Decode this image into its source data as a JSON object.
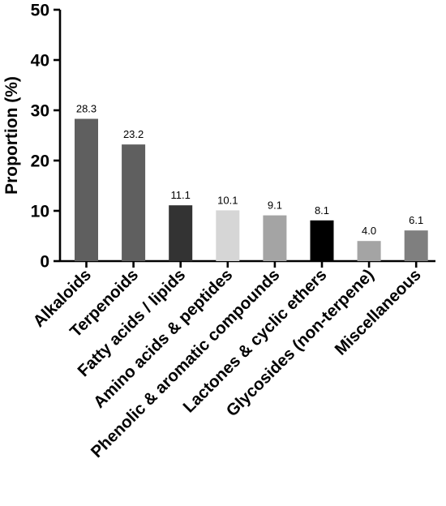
{
  "chart_data": {
    "type": "bar",
    "title": "",
    "xlabel": "",
    "ylabel": "Proportion (%)",
    "ylim": [
      0,
      50
    ],
    "yticks": [
      0,
      10,
      20,
      30,
      40,
      50
    ],
    "grid": false,
    "categories": [
      "Alkaloids",
      "Terpenoids",
      "Fatty acids / lipids",
      "Amino acids & peptides",
      "Phenolic & aromatic compounds",
      "Lactones & cyclic ethers",
      "Glycosides (non-terpene)",
      "Miscellaneous"
    ],
    "values": [
      28.3,
      23.2,
      11.1,
      10.1,
      9.1,
      8.1,
      4.0,
      6.1
    ],
    "data_labels": [
      "28.3",
      "23.2",
      "11.1",
      "10.1",
      "9.1",
      "8.1",
      "4.0",
      "6.1"
    ],
    "colors": [
      "#5f5f5f",
      "#5f5f5f",
      "#333333",
      "#d6d6d6",
      "#a4a4a4",
      "#000000",
      "#a4a4a4",
      "#7f7f7f"
    ]
  }
}
